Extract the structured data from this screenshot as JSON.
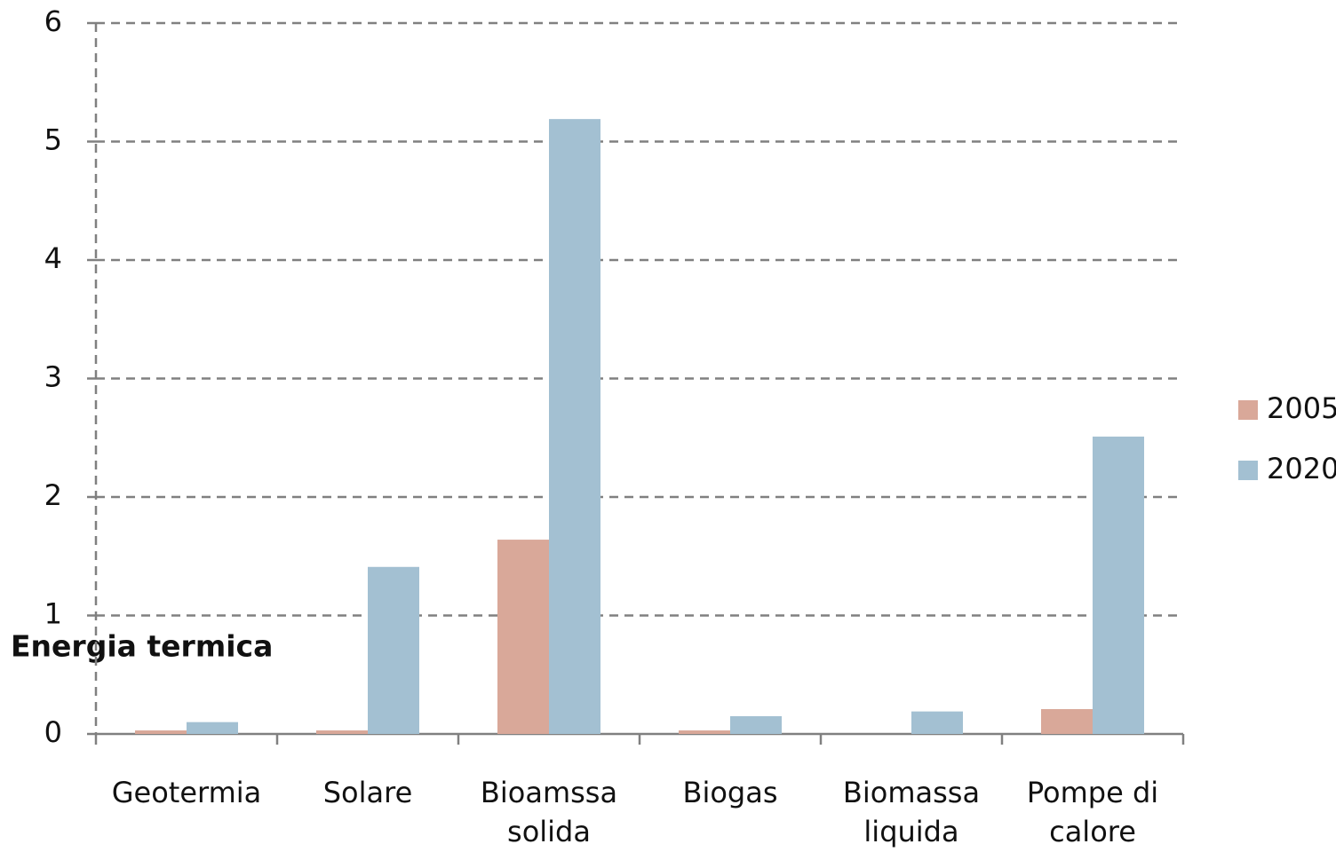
{
  "chart_data": {
    "type": "bar",
    "annotation": "Energia termica",
    "categories": [
      "Geotermia",
      "Solare",
      "Bioamssa\nsolida",
      "Biogas",
      "Biomassa\nliquida",
      "Pompe di\ncalore"
    ],
    "series": [
      {
        "name": "2005",
        "color": "#d9a899",
        "values": [
          0.03,
          0.03,
          1.64,
          0.03,
          0,
          0.21
        ]
      },
      {
        "name": "2020",
        "color": "#a3c0d2",
        "values": [
          0.1,
          1.41,
          5.19,
          0.15,
          0.19,
          2.51
        ]
      }
    ],
    "ylim": [
      0,
      6
    ],
    "yticks": [
      0,
      1,
      2,
      3,
      4,
      5,
      6
    ],
    "grid": true,
    "legend": "right"
  }
}
